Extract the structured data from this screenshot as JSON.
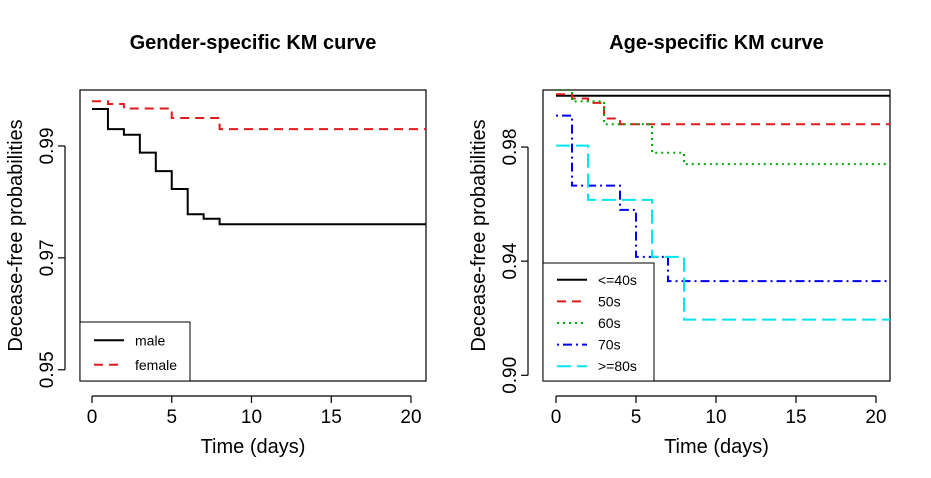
{
  "chart_data": [
    {
      "type": "line",
      "step": true,
      "title": "Gender-specific KM curve",
      "xlabel": "Time (days)",
      "ylabel": "Decease-free probabilities",
      "xlim": [
        0,
        21
      ],
      "ylim": [
        0.948,
        1.0
      ],
      "xticks": [
        0,
        5,
        10,
        15,
        20
      ],
      "xtick_labels": [
        "0",
        "5",
        "10",
        "15",
        "20"
      ],
      "yticks": [
        0.95,
        0.97,
        0.99
      ],
      "ytick_labels": [
        "0.95",
        "0.97",
        "0.99"
      ],
      "legend": "bottom-left",
      "series": [
        {
          "name": "male",
          "color": "#000000",
          "dash": "solid",
          "x": [
            0,
            1,
            2,
            3,
            4,
            5,
            6,
            7,
            8,
            21
          ],
          "y": [
            0.9966,
            0.993,
            0.992,
            0.9888,
            0.9855,
            0.9823,
            0.9778,
            0.977,
            0.976,
            0.976
          ]
        },
        {
          "name": "female",
          "color": "#e31a1c",
          "dash": "dashed",
          "x": [
            0,
            1,
            2,
            5,
            8,
            21
          ],
          "y": [
            0.998,
            0.9975,
            0.9967,
            0.995,
            0.993,
            0.993
          ]
        }
      ]
    },
    {
      "type": "line",
      "step": true,
      "title": "Age-specific KM curve",
      "xlabel": "Time (days)",
      "ylabel": "Decease-free probabilities",
      "xlim": [
        0,
        21
      ],
      "ylim": [
        0.898,
        1.0
      ],
      "xticks": [
        0,
        5,
        10,
        15,
        20
      ],
      "xtick_labels": [
        "0",
        "5",
        "10",
        "15",
        "20"
      ],
      "yticks": [
        0.9,
        0.94,
        0.98
      ],
      "ytick_labels": [
        "0.90",
        "0.94",
        "0.98"
      ],
      "legend": "bottom-left",
      "series": [
        {
          "name": "<=40s",
          "color": "#000000",
          "dash": "solid",
          "x": [
            0,
            21
          ],
          "y": [
            0.998,
            0.998
          ]
        },
        {
          "name": "50s",
          "color": "#e31a1c",
          "dash": "dashed",
          "x": [
            0,
            1,
            2,
            3,
            4,
            21
          ],
          "y": [
            0.9985,
            0.997,
            0.9955,
            0.99,
            0.988,
            0.988
          ]
        },
        {
          "name": "60s",
          "color": "#00aa00",
          "dash": "dotted",
          "x": [
            0,
            1,
            3,
            6,
            8,
            21
          ],
          "y": [
            1.0,
            0.996,
            0.988,
            0.978,
            0.974,
            0.974
          ]
        },
        {
          "name": "70s",
          "color": "#0000ee",
          "dash": "dotdash",
          "x": [
            0,
            1,
            2,
            4,
            5,
            7,
            21
          ],
          "y": [
            0.991,
            0.9665,
            0.9665,
            0.958,
            0.9415,
            0.933,
            0.933
          ]
        },
        {
          "name": ">=80s",
          "color": "#00e5ee",
          "dash": "longdash",
          "x": [
            0,
            2,
            6,
            8,
            21
          ],
          "y": [
            0.9805,
            0.9615,
            0.9415,
            0.9195,
            0.9195
          ]
        }
      ]
    }
  ]
}
